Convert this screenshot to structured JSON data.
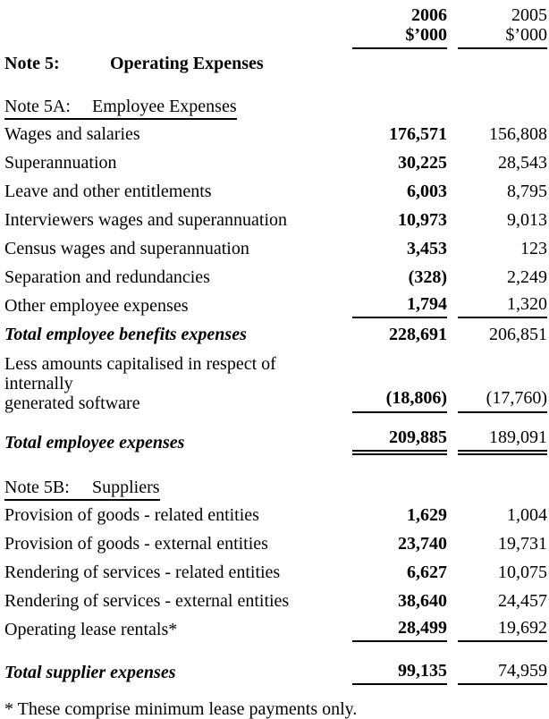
{
  "columns": {
    "year_2006": "2006",
    "year_2005": "2005",
    "unit_2006": "$’000",
    "unit_2005": "$’000"
  },
  "note5": {
    "label": "Note 5:",
    "title": "Operating Expenses"
  },
  "note5a": {
    "label": "Note 5A:",
    "title": "Employee Expenses",
    "rows": [
      {
        "label": "Wages and salaries",
        "v2006": "176,571",
        "v2005": "156,808"
      },
      {
        "label": "Superannuation",
        "v2006": "30,225",
        "v2005": "28,543"
      },
      {
        "label": "Leave and other entitlements",
        "v2006": "6,003",
        "v2005": "8,795"
      },
      {
        "label": "Interviewers wages and superannuation",
        "v2006": "10,973",
        "v2005": "9,013"
      },
      {
        "label": "Census wages and superannuation",
        "v2006": "3,453",
        "v2005": "123"
      },
      {
        "label": "Separation and redundancies",
        "v2006": "(328)",
        "v2005": "2,249"
      },
      {
        "label": "Other employee expenses",
        "v2006": "1,794",
        "v2005": "1,320"
      }
    ],
    "total_benefits": {
      "label": "Total employee benefits expenses",
      "v2006": "228,691",
      "v2005": "206,851"
    },
    "capitalised": {
      "label_line1": "Less amounts capitalised in respect of internally",
      "label_line2": "generated software",
      "v2006": "(18,806)",
      "v2005": "(17,760)"
    },
    "total": {
      "label": "Total employee expenses",
      "v2006": "209,885",
      "v2005": "189,091"
    }
  },
  "note5b": {
    "label": "Note 5B:",
    "title": "Suppliers",
    "rows": [
      {
        "label": "Provision of goods - related entities",
        "v2006": "1,629",
        "v2005": "1,004"
      },
      {
        "label": "Provision of goods - external entities",
        "v2006": "23,740",
        "v2005": "19,731"
      },
      {
        "label": "Rendering of services - related entities",
        "v2006": "6,627",
        "v2005": "10,075"
      },
      {
        "label": "Rendering of services - external entities",
        "v2006": "38,640",
        "v2005": "24,457"
      },
      {
        "label": "Operating lease rentals*",
        "v2006": "28,499",
        "v2005": "19,692"
      }
    ],
    "total": {
      "label": "Total supplier expenses",
      "v2006": "99,135",
      "v2005": "74,959"
    }
  },
  "footnote": "* These comprise minimum lease payments only."
}
